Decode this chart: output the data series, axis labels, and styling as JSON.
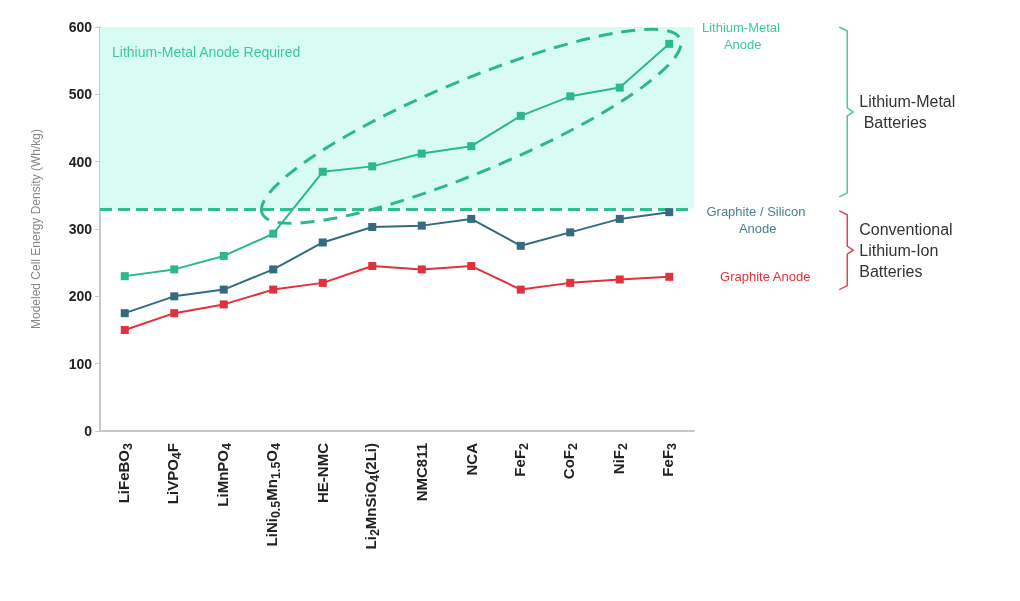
{
  "chart_data": {
    "type": "line",
    "ylabel": "Modeled Cell Energy Density (Wh/kg)",
    "categories": [
      "LiFeBO$_{3}$",
      "LiVPO$_{4}$F",
      "LiMnPO$_{4}$",
      "LiNi$_{0.5}$Mn$_{1.5}$O$_{4}$",
      "HE-NMC",
      "Li$_{2}$MnSiO$_{4}$(2Li)",
      "NMC811",
      "NCA",
      "FeF$_{2}$",
      "CoF$_{2}$",
      "NiF$_{2}$",
      "FeF$_{3}$"
    ],
    "series": [
      {
        "name": "Lithium-Metal Anode",
        "color": "#2db88a",
        "values": [
          230,
          240,
          260,
          293,
          385,
          393,
          412,
          423,
          468,
          497,
          510,
          575
        ]
      },
      {
        "name": "Graphite / Silicon Anode",
        "color": "#336b80",
        "values": [
          175,
          200,
          210,
          240,
          280,
          303,
          305,
          315,
          275,
          295,
          315,
          325
        ]
      },
      {
        "name": "Graphite Anode",
        "color": "#e0323c",
        "values": [
          150,
          175,
          188,
          210,
          220,
          245,
          240,
          245,
          210,
          220,
          225,
          229
        ]
      }
    ],
    "ylim": [
      0,
      600
    ],
    "yticks": [
      0,
      100,
      200,
      300,
      400,
      500,
      600
    ],
    "grid": false,
    "legend": false,
    "marker": "square",
    "line_style": "solid",
    "ref_lines": [
      {
        "axis": "y",
        "value": 330,
        "color": "#2dbf8f",
        "line_style": "dashed"
      }
    ],
    "bands": [
      {
        "axis": "y",
        "from": 330,
        "to": 600,
        "label": "Lithium-Metal Anode Required",
        "color": "#d8fcf3"
      }
    ],
    "annotations": [
      "Lithium-Metal Batteries",
      "Conventional Lithium-Ion Batteries"
    ]
  }
}
